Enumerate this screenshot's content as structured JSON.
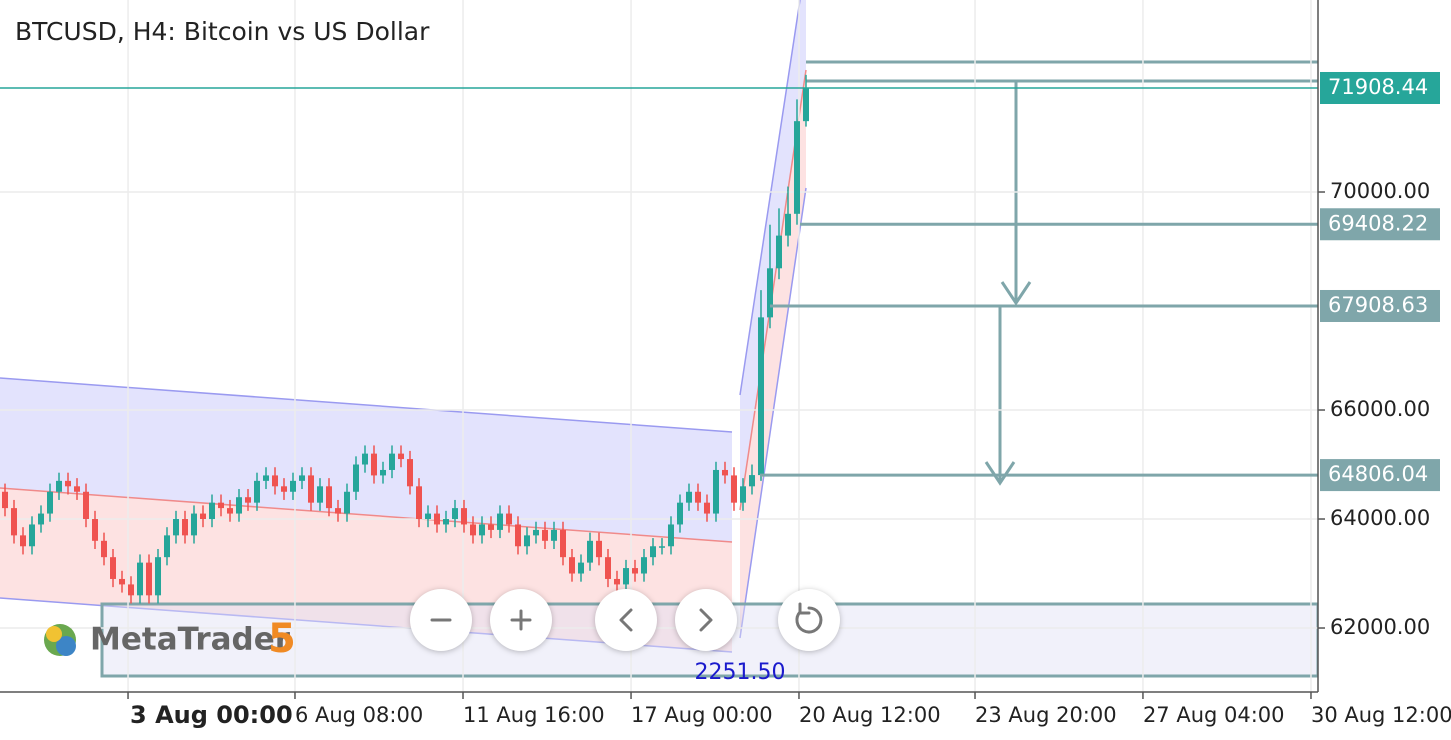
{
  "chart_data": {
    "type": "candlestick",
    "title": "BTCUSD, H4: Bitcoin vs US Dollar",
    "up_color": "#26a69a",
    "down_color": "#ef5350",
    "x": [
      0,
      1,
      2,
      3,
      4,
      5,
      6,
      7,
      8,
      9,
      10,
      11,
      12,
      13,
      14,
      15,
      16,
      17,
      18,
      19,
      20,
      21,
      22,
      23,
      24,
      25,
      26,
      27,
      28,
      29,
      30,
      31,
      32,
      33,
      34,
      35,
      36,
      37,
      38,
      39,
      40,
      41,
      42,
      43,
      44,
      45,
      46,
      47,
      48,
      49,
      50,
      51,
      52,
      53,
      54,
      55,
      56,
      57,
      58,
      59,
      60,
      61,
      62,
      63,
      64,
      65,
      66,
      67,
      68,
      69,
      70,
      71,
      72,
      73,
      74,
      75,
      76,
      77,
      78,
      79,
      80,
      81,
      82,
      83,
      84,
      85,
      86,
      87,
      88,
      89
    ],
    "open": [
      64500,
      64200,
      63700,
      63500,
      63900,
      64100,
      64500,
      64700,
      64600,
      64500,
      64000,
      63600,
      63300,
      62900,
      62800,
      62600,
      63200,
      62600,
      63300,
      63700,
      64000,
      63700,
      64100,
      64000,
      64300,
      64200,
      64100,
      64400,
      64300,
      64700,
      64800,
      64600,
      64500,
      64700,
      64800,
      64300,
      64600,
      64200,
      64100,
      64500,
      65000,
      65200,
      64800,
      64900,
      65200,
      65100,
      64600,
      64000,
      64100,
      63900,
      64000,
      64200,
      63900,
      63700,
      63900,
      63800,
      64100,
      63900,
      63500,
      63700,
      63800,
      63600,
      63800,
      63300,
      63000,
      63200,
      63600,
      63300,
      62900,
      62800,
      63100,
      63000,
      63300,
      63500,
      63500,
      63900,
      64300,
      64500,
      64300,
      64100,
      64900,
      64800,
      64300,
      64600,
      64806,
      67700,
      68600,
      69200,
      69600,
      71300
    ],
    "high": [
      64650,
      64350,
      63850,
      64050,
      64250,
      64650,
      64850,
      64850,
      64750,
      64650,
      64150,
      63750,
      63450,
      63050,
      62950,
      63350,
      63350,
      63450,
      63850,
      64150,
      64150,
      64250,
      64250,
      64450,
      64450,
      64350,
      64550,
      64550,
      64850,
      64950,
      64950,
      64750,
      64850,
      64950,
      64950,
      64750,
      64750,
      64350,
      64650,
      65150,
      65350,
      65350,
      65050,
      65350,
      65350,
      65250,
      64750,
      64250,
      64250,
      64150,
      64350,
      64350,
      64050,
      64050,
      64050,
      64250,
      64250,
      64050,
      63850,
      63950,
      63950,
      63950,
      63950,
      63450,
      63350,
      63750,
      63750,
      63450,
      63050,
      63250,
      63250,
      63450,
      63650,
      63650,
      64050,
      64450,
      64650,
      64650,
      64450,
      65050,
      65050,
      64950,
      64750,
      65000,
      68200,
      69400,
      69700,
      70100,
      71700,
      72150
    ],
    "low": [
      64050,
      63550,
      63350,
      63350,
      63750,
      63950,
      64350,
      64450,
      64350,
      63850,
      63450,
      63150,
      62750,
      62650,
      62450,
      62450,
      62450,
      62450,
      63150,
      63550,
      63550,
      63550,
      63850,
      63850,
      64050,
      63950,
      63950,
      64150,
      64150,
      64550,
      64450,
      64350,
      64350,
      64550,
      64150,
      64150,
      64050,
      63950,
      63950,
      64350,
      64850,
      64650,
      64650,
      64750,
      64950,
      64450,
      63850,
      63850,
      63750,
      63750,
      63850,
      63750,
      63550,
      63550,
      63650,
      63650,
      63750,
      63350,
      63350,
      63550,
      63450,
      63450,
      63150,
      62850,
      62850,
      63050,
      63150,
      62750,
      62650,
      62650,
      62850,
      62850,
      63150,
      63350,
      63350,
      63750,
      64150,
      64150,
      63950,
      63950,
      64650,
      64150,
      64150,
      64450,
      64700,
      67500,
      68400,
      69000,
      69400,
      71200
    ],
    "close": [
      64200,
      63700,
      63500,
      63900,
      64100,
      64500,
      64700,
      64600,
      64500,
      64000,
      63600,
      63300,
      62900,
      62800,
      62600,
      63200,
      62600,
      63300,
      63700,
      64000,
      63700,
      64100,
      64000,
      64300,
      64200,
      64100,
      64400,
      64300,
      64700,
      64800,
      64600,
      64500,
      64700,
      64800,
      64300,
      64600,
      64200,
      64100,
      64500,
      65000,
      65200,
      64800,
      64900,
      65200,
      65100,
      64600,
      64000,
      64100,
      63900,
      64000,
      64200,
      63900,
      63700,
      63900,
      63800,
      64100,
      63900,
      63500,
      63700,
      63800,
      63600,
      63800,
      63300,
      63000,
      63200,
      63600,
      63300,
      62900,
      62800,
      63100,
      63000,
      63300,
      63500,
      63500,
      63900,
      64300,
      64500,
      64300,
      64100,
      64900,
      64800,
      64300,
      64600,
      64806,
      67700,
      68600,
      69200,
      69600,
      71300,
      71908
    ],
    "xlim": [
      -0.556,
      145.89
    ],
    "xticks": [
      {
        "value": 13.67,
        "label": "3 Aug 00:00"
      },
      {
        "value": 32.22,
        "label": "6 Aug 08:00"
      },
      {
        "value": 50.89,
        "label": "11 Aug 16:00"
      },
      {
        "value": 69.56,
        "label": "17 Aug 00:00"
      },
      {
        "value": 88.22,
        "label": "20 Aug 12:00"
      },
      {
        "value": 107.78,
        "label": "23 Aug 20:00"
      },
      {
        "value": 126.44,
        "label": "27 Aug 04:00"
      },
      {
        "value": 145.11,
        "label": "30 Aug 12:00"
      }
    ],
    "ylim": [
      60826,
      73523
    ],
    "yticks": [
      {
        "value": 62000,
        "label": "62000.00"
      },
      {
        "value": 64000,
        "label": "64000.00"
      },
      {
        "value": 66000,
        "label": "66000.00"
      },
      {
        "value": 70000,
        "label": "70000.00"
      }
    ],
    "grid": true,
    "price_lines": [
      71908.44,
      69408.22,
      67908.63,
      64806.04
    ],
    "annotations": [
      "2251.50"
    ]
  },
  "logo": {
    "name": "MetaTrader",
    "version": "5"
  }
}
